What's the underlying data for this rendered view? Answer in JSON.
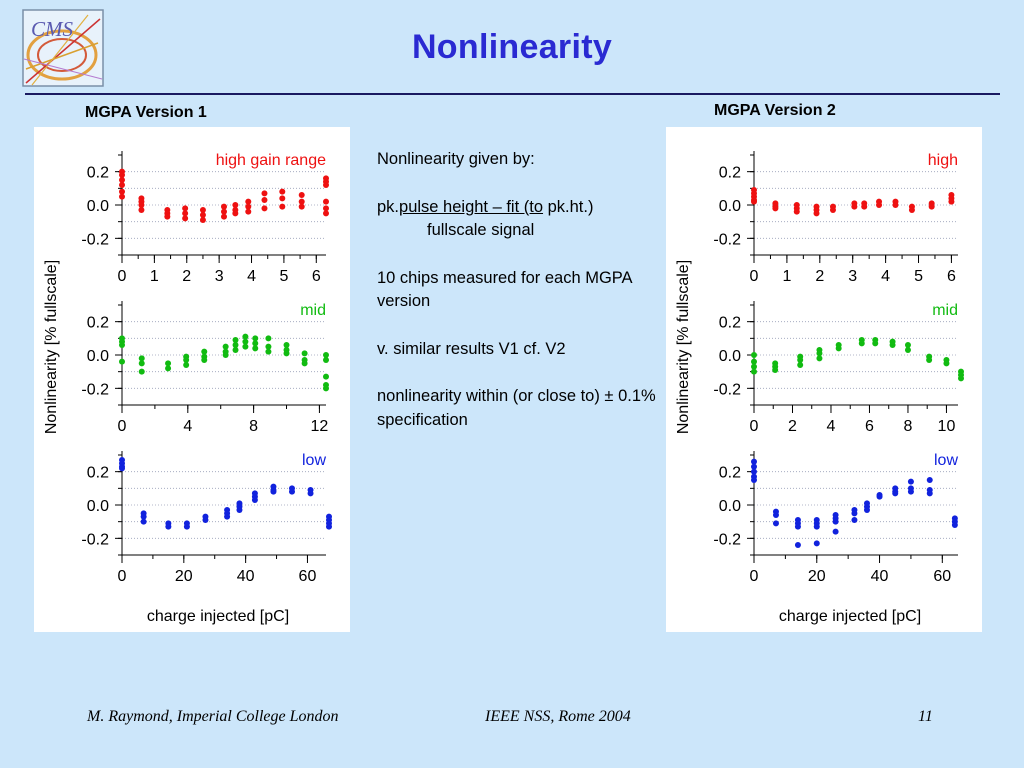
{
  "slide": {
    "title": "Nonlinearity",
    "logo_text": "CMS",
    "footer": {
      "left": "M. Raymond, Imperial College London",
      "center": "IEEE NSS, Rome 2004",
      "page": "11"
    }
  },
  "notes": {
    "line1": "Nonlinearity given by:",
    "formula_prefix": "pk.",
    "formula_numerator": "pulse height – fit (to",
    "formula_suffix": " pk.ht.)",
    "formula_denominator": "fullscale signal",
    "chips_text": "10 chips measured for each MGPA version",
    "similar_text": "v. similar results V1 cf. V2",
    "spec_text": "nonlinearity within (or close to) ± 0.1% specification"
  },
  "colors": {
    "high": "#ee1111",
    "mid": "#11bb11",
    "low": "#1122dd",
    "title": "#2a2ad2"
  },
  "chart_data": [
    {
      "type": "scatter",
      "title": "MGPA Version 1",
      "ylabel": "Nonlinearity [% fullscale]",
      "xlabel": "charge injected [pC]",
      "panels": [
        {
          "name": "high gain range",
          "color": "#ee1111",
          "ylim": [
            -0.3,
            0.3
          ],
          "yticks": [
            "0.2",
            "0.0",
            "-0.2"
          ],
          "xlim": [
            0,
            6.3
          ],
          "xticks": [
            "0",
            "1",
            "2",
            "3",
            "4",
            "5",
            "6"
          ],
          "points": [
            [
              0,
              0.2
            ],
            [
              0,
              0.18
            ],
            [
              0,
              0.15
            ],
            [
              0,
              0.12
            ],
            [
              0,
              0.08
            ],
            [
              0,
              0.05
            ],
            [
              0.6,
              0.04
            ],
            [
              0.6,
              0.02
            ],
            [
              0.6,
              0.0
            ],
            [
              0.6,
              -0.03
            ],
            [
              1.4,
              -0.03
            ],
            [
              1.4,
              -0.05
            ],
            [
              1.4,
              -0.07
            ],
            [
              1.95,
              -0.02
            ],
            [
              1.95,
              -0.05
            ],
            [
              1.95,
              -0.08
            ],
            [
              2.5,
              -0.03
            ],
            [
              2.5,
              -0.06
            ],
            [
              2.5,
              -0.09
            ],
            [
              3.15,
              -0.01
            ],
            [
              3.15,
              -0.04
            ],
            [
              3.15,
              -0.07
            ],
            [
              3.5,
              0.0
            ],
            [
              3.5,
              -0.03
            ],
            [
              3.5,
              -0.05
            ],
            [
              3.9,
              0.02
            ],
            [
              3.9,
              -0.01
            ],
            [
              3.9,
              -0.04
            ],
            [
              4.4,
              0.07
            ],
            [
              4.4,
              0.03
            ],
            [
              4.4,
              -0.02
            ],
            [
              4.95,
              0.08
            ],
            [
              4.95,
              0.04
            ],
            [
              4.95,
              -0.01
            ],
            [
              5.55,
              0.06
            ],
            [
              5.55,
              0.02
            ],
            [
              5.55,
              -0.01
            ],
            [
              6.3,
              0.16
            ],
            [
              6.3,
              0.14
            ],
            [
              6.3,
              0.12
            ],
            [
              6.3,
              0.02
            ],
            [
              6.3,
              -0.02
            ],
            [
              6.3,
              -0.05
            ]
          ]
        },
        {
          "name": "mid",
          "color": "#11bb11",
          "ylim": [
            -0.3,
            0.3
          ],
          "yticks": [
            "0.2",
            "0.0",
            "-0.2"
          ],
          "xlim": [
            0,
            12.4
          ],
          "xticks": [
            "0",
            "4",
            "8",
            "12"
          ],
          "points": [
            [
              0,
              0.1
            ],
            [
              0,
              0.08
            ],
            [
              0,
              0.06
            ],
            [
              0,
              -0.04
            ],
            [
              1.2,
              -0.02
            ],
            [
              1.2,
              -0.05
            ],
            [
              1.2,
              -0.1
            ],
            [
              2.8,
              -0.05
            ],
            [
              2.8,
              -0.08
            ],
            [
              3.9,
              -0.01
            ],
            [
              3.9,
              -0.03
            ],
            [
              3.9,
              -0.06
            ],
            [
              5.0,
              0.02
            ],
            [
              5.0,
              -0.01
            ],
            [
              5.0,
              -0.03
            ],
            [
              6.3,
              0.05
            ],
            [
              6.3,
              0.02
            ],
            [
              6.3,
              0.0
            ],
            [
              6.9,
              0.09
            ],
            [
              6.9,
              0.06
            ],
            [
              6.9,
              0.03
            ],
            [
              7.5,
              0.11
            ],
            [
              7.5,
              0.08
            ],
            [
              7.5,
              0.05
            ],
            [
              8.1,
              0.1
            ],
            [
              8.1,
              0.07
            ],
            [
              8.1,
              0.04
            ],
            [
              8.9,
              0.1
            ],
            [
              8.9,
              0.05
            ],
            [
              8.9,
              0.02
            ],
            [
              10.0,
              0.06
            ],
            [
              10.0,
              0.01
            ],
            [
              10.0,
              0.03
            ],
            [
              11.1,
              0.01
            ],
            [
              11.1,
              -0.03
            ],
            [
              11.1,
              -0.05
            ],
            [
              12.4,
              0.0
            ],
            [
              12.4,
              -0.03
            ],
            [
              12.4,
              -0.13
            ],
            [
              12.4,
              -0.18
            ],
            [
              12.4,
              -0.2
            ]
          ]
        },
        {
          "name": "low",
          "color": "#1122dd",
          "ylim": [
            -0.3,
            0.3
          ],
          "yticks": [
            "0.2",
            "0.0",
            "-0.2"
          ],
          "xlim": [
            0,
            66
          ],
          "xticks": [
            "0",
            "20",
            "40",
            "60"
          ],
          "points": [
            [
              0,
              0.27
            ],
            [
              0,
              0.25
            ],
            [
              0,
              0.23
            ],
            [
              0,
              0.22
            ],
            [
              7,
              -0.05
            ],
            [
              7,
              -0.07
            ],
            [
              7,
              -0.1
            ],
            [
              15,
              -0.11
            ],
            [
              15,
              -0.13
            ],
            [
              21,
              -0.11
            ],
            [
              21,
              -0.13
            ],
            [
              27,
              -0.07
            ],
            [
              27,
              -0.09
            ],
            [
              34,
              -0.03
            ],
            [
              34,
              -0.05
            ],
            [
              34,
              -0.07
            ],
            [
              38,
              0.01
            ],
            [
              38,
              -0.01
            ],
            [
              38,
              -0.03
            ],
            [
              43,
              0.07
            ],
            [
              43,
              0.05
            ],
            [
              43,
              0.03
            ],
            [
              49,
              0.11
            ],
            [
              49,
              0.09
            ],
            [
              49,
              0.08
            ],
            [
              55,
              0.1
            ],
            [
              55,
              0.08
            ],
            [
              61,
              0.09
            ],
            [
              61,
              0.07
            ],
            [
              69,
              -0.07
            ],
            [
              69,
              -0.09
            ],
            [
              69,
              -0.11
            ],
            [
              69,
              -0.13
            ]
          ]
        }
      ]
    },
    {
      "type": "scatter",
      "title": "MGPA Version 2",
      "ylabel": "Nonlinearity [% fullscale]",
      "xlabel": "charge injected [pC]",
      "panels": [
        {
          "name": "high",
          "color": "#ee1111",
          "ylim": [
            -0.3,
            0.3
          ],
          "yticks": [
            "0.2",
            "0.0",
            "-0.2"
          ],
          "xlim": [
            0,
            6.2
          ],
          "xticks": [
            "0",
            "1",
            "2",
            "3",
            "4",
            "5",
            "6"
          ],
          "points": [
            [
              0,
              0.09
            ],
            [
              0,
              0.07
            ],
            [
              0,
              0.05
            ],
            [
              0,
              0.03
            ],
            [
              0,
              0.02
            ],
            [
              0.65,
              0.01
            ],
            [
              0.65,
              -0.01
            ],
            [
              0.65,
              -0.02
            ],
            [
              1.3,
              0.0
            ],
            [
              1.3,
              -0.02
            ],
            [
              1.3,
              -0.04
            ],
            [
              1.9,
              -0.01
            ],
            [
              1.9,
              -0.03
            ],
            [
              1.9,
              -0.05
            ],
            [
              2.4,
              -0.01
            ],
            [
              2.4,
              -0.03
            ],
            [
              3.05,
              0.01
            ],
            [
              3.05,
              -0.01
            ],
            [
              3.35,
              0.01
            ],
            [
              3.35,
              -0.01
            ],
            [
              3.8,
              0.02
            ],
            [
              3.8,
              0.0
            ],
            [
              4.3,
              0.02
            ],
            [
              4.3,
              0.0
            ],
            [
              4.8,
              -0.01
            ],
            [
              4.8,
              -0.03
            ],
            [
              5.4,
              0.01
            ],
            [
              5.4,
              -0.01
            ],
            [
              6.0,
              0.06
            ],
            [
              6.0,
              0.04
            ],
            [
              6.0,
              0.02
            ]
          ]
        },
        {
          "name": "mid",
          "color": "#11bb11",
          "ylim": [
            -0.3,
            0.3
          ],
          "yticks": [
            "0.2",
            "0.0",
            "-0.2"
          ],
          "xlim": [
            0,
            10.6
          ],
          "xticks": [
            "0",
            "2",
            "4",
            "6",
            "8",
            "10"
          ],
          "points": [
            [
              0,
              0.0
            ],
            [
              0,
              -0.04
            ],
            [
              0,
              -0.07
            ],
            [
              0,
              -0.1
            ],
            [
              1.1,
              -0.05
            ],
            [
              1.1,
              -0.07
            ],
            [
              1.1,
              -0.09
            ],
            [
              2.4,
              -0.01
            ],
            [
              2.4,
              -0.03
            ],
            [
              2.4,
              -0.06
            ],
            [
              3.4,
              0.03
            ],
            [
              3.4,
              0.01
            ],
            [
              3.4,
              -0.02
            ],
            [
              4.4,
              0.06
            ],
            [
              4.4,
              0.04
            ],
            [
              5.6,
              0.09
            ],
            [
              5.6,
              0.07
            ],
            [
              6.3,
              0.09
            ],
            [
              6.3,
              0.07
            ],
            [
              7.2,
              0.08
            ],
            [
              7.2,
              0.06
            ],
            [
              8.0,
              0.06
            ],
            [
              8.0,
              0.03
            ],
            [
              9.1,
              -0.01
            ],
            [
              9.1,
              -0.03
            ],
            [
              10.0,
              -0.03
            ],
            [
              10.0,
              -0.05
            ],
            [
              10.9,
              -0.1
            ],
            [
              10.9,
              -0.12
            ],
            [
              10.9,
              -0.14
            ]
          ]
        },
        {
          "name": "low",
          "color": "#1122dd",
          "ylim": [
            -0.3,
            0.3
          ],
          "yticks": [
            "0.2",
            "0.0",
            "-0.2"
          ],
          "xlim": [
            0,
            65
          ],
          "xticks": [
            "0",
            "20",
            "40",
            "60"
          ],
          "points": [
            [
              0,
              0.26
            ],
            [
              0,
              0.23
            ],
            [
              0,
              0.2
            ],
            [
              0,
              0.17
            ],
            [
              0,
              0.15
            ],
            [
              7,
              -0.04
            ],
            [
              7,
              -0.06
            ],
            [
              7,
              -0.11
            ],
            [
              14,
              -0.09
            ],
            [
              14,
              -0.11
            ],
            [
              14,
              -0.13
            ],
            [
              14,
              -0.24
            ],
            [
              20,
              -0.09
            ],
            [
              20,
              -0.11
            ],
            [
              20,
              -0.13
            ],
            [
              20,
              -0.23
            ],
            [
              26,
              -0.06
            ],
            [
              26,
              -0.08
            ],
            [
              26,
              -0.1
            ],
            [
              26,
              -0.16
            ],
            [
              32,
              -0.03
            ],
            [
              32,
              -0.05
            ],
            [
              32,
              -0.09
            ],
            [
              36,
              0.01
            ],
            [
              36,
              -0.01
            ],
            [
              36,
              -0.03
            ],
            [
              40,
              0.06
            ],
            [
              40,
              0.05
            ],
            [
              45,
              0.1
            ],
            [
              45,
              0.08
            ],
            [
              45,
              0.07
            ],
            [
              50,
              0.14
            ],
            [
              50,
              0.1
            ],
            [
              50,
              0.08
            ],
            [
              56,
              0.15
            ],
            [
              56,
              0.09
            ],
            [
              56,
              0.07
            ],
            [
              64,
              -0.08
            ],
            [
              64,
              -0.1
            ],
            [
              64,
              -0.12
            ]
          ]
        }
      ]
    }
  ]
}
